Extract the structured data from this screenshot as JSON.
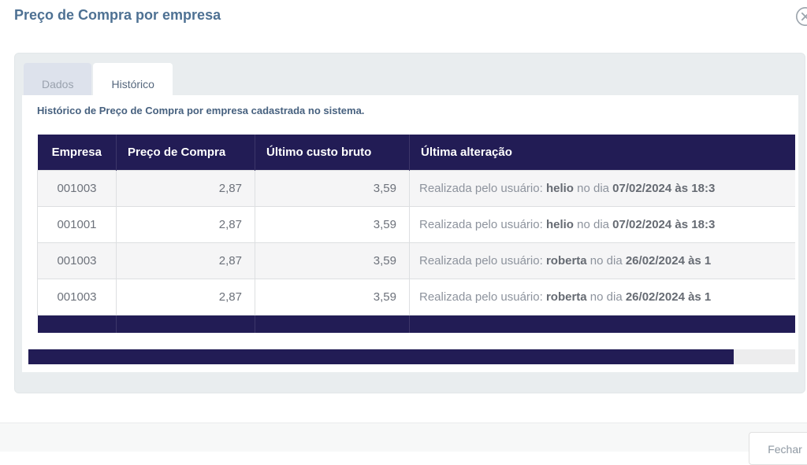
{
  "modal": {
    "title": "Preço de Compra por empresa"
  },
  "tabs": [
    {
      "label": "Dados",
      "active": false
    },
    {
      "label": "Histórico",
      "active": true
    }
  ],
  "content": {
    "description": "Histórico de Preço de Compra por empresa cadastrada no sistema."
  },
  "table": {
    "columns": [
      "Empresa",
      "Preço de Compra",
      "Último custo bruto",
      "Última alteração"
    ],
    "rows": [
      {
        "empresa": "001003",
        "preco_compra": "2,87",
        "ultimo_custo_bruto": "3,59",
        "alteracao_prefix": "Realizada pelo usuário: ",
        "alteracao_user": "helio",
        "alteracao_middle": " no dia ",
        "alteracao_datetime": "07/02/2024 às 18:3"
      },
      {
        "empresa": "001001",
        "preco_compra": "2,87",
        "ultimo_custo_bruto": "3,59",
        "alteracao_prefix": "Realizada pelo usuário: ",
        "alteracao_user": "helio",
        "alteracao_middle": " no dia ",
        "alteracao_datetime": "07/02/2024 às 18:3"
      },
      {
        "empresa": "001003",
        "preco_compra": "2,87",
        "ultimo_custo_bruto": "3,59",
        "alteracao_prefix": "Realizada pelo usuário: ",
        "alteracao_user": "roberta",
        "alteracao_middle": " no dia ",
        "alteracao_datetime": "26/02/2024 às 1"
      },
      {
        "empresa": "001003",
        "preco_compra": "2,87",
        "ultimo_custo_bruto": "3,59",
        "alteracao_prefix": "Realizada pelo usuário: ",
        "alteracao_user": "roberta",
        "alteracao_middle": " no dia ",
        "alteracao_datetime": "26/02/2024 às 1"
      }
    ]
  },
  "footer": {
    "close_label": "Fechar"
  },
  "colors": {
    "accent_navy": "#221c55",
    "title_blue": "#4e7193",
    "card_bg": "#e9edef",
    "stripe_bg": "#f5f5f6"
  }
}
